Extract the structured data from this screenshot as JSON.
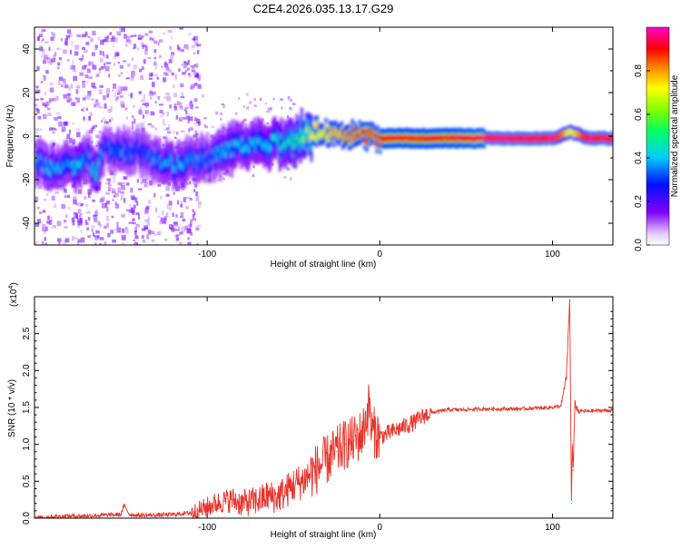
{
  "figure": {
    "title": "C2E4.2026.035.13.17.G29"
  },
  "chart_data": [
    {
      "id": "spectrogram",
      "type": "heatmap",
      "title": "C2E4.2026.035.13.17.G29",
      "xlabel": "Height of straight line (km)",
      "ylabel": "Frequency (Hz)",
      "xlim": [
        -200,
        135
      ],
      "ylim": [
        -50,
        50
      ],
      "x_ticks": [
        -100,
        0,
        100
      ],
      "x_tick_labels": [
        "-100",
        "0",
        "100"
      ],
      "y_ticks": [
        -40,
        -20,
        0,
        20,
        40
      ],
      "y_tick_labels": [
        "-40",
        "-20",
        "0",
        "20",
        "40"
      ],
      "grid": false,
      "colorbar": {
        "label": "Normalized spectral amplitude",
        "range": [
          0,
          1
        ],
        "ticks": [
          0,
          0.2,
          0.4,
          0.6,
          0.8
        ],
        "tick_labels": [
          "0.0",
          "0.2",
          "0.4",
          "0.6",
          "0.8"
        ],
        "colormap": "rainbow (violet-blue-cyan-green-yellow-red-magenta)"
      },
      "ridge": {
        "description": "dominant frequency ridge",
        "x": [
          -197,
          -190,
          -182,
          -175,
          -170,
          -165,
          -160,
          -150,
          -140,
          -130,
          -120,
          -110,
          -100,
          -90,
          -80,
          -70,
          -60,
          -50,
          -45,
          -40,
          -30,
          -20,
          -10,
          0,
          10,
          20,
          40,
          60,
          80,
          100,
          110,
          120,
          135
        ],
        "freq": [
          -12,
          -15,
          -13,
          -14,
          -10,
          -17,
          -5,
          -8,
          -6,
          -10,
          -13,
          -12,
          -10,
          -7,
          -4,
          -5,
          -3,
          -2,
          1,
          2,
          2,
          1,
          0,
          -1,
          -1,
          -1,
          -1,
          -1,
          -1,
          -1,
          2,
          -1,
          -1
        ],
        "amplitude": [
          0.35,
          0.4,
          0.35,
          0.45,
          0.3,
          0.5,
          0.3,
          0.35,
          0.3,
          0.35,
          0.4,
          0.35,
          0.35,
          0.4,
          0.4,
          0.4,
          0.45,
          0.5,
          0.6,
          0.7,
          0.75,
          0.8,
          0.85,
          0.9,
          0.9,
          0.9,
          0.9,
          0.95,
          0.95,
          0.95,
          0.7,
          0.95,
          0.95
        ]
      }
    },
    {
      "id": "snr",
      "type": "line",
      "xlabel": "Height of straight line (km)",
      "ylabel": "SNR (10 * v/v)",
      "y_multiplier_label": "(x10",
      "y_multiplier_exp": "4",
      "y_multiplier_close": ")",
      "xlim": [
        -200,
        135
      ],
      "ylim": [
        0,
        3.0
      ],
      "x_ticks": [
        -100,
        0,
        100
      ],
      "x_tick_labels": [
        "-100",
        "0",
        "100"
      ],
      "y_ticks": [
        0,
        0.5,
        1.0,
        1.5,
        2.0,
        2.5
      ],
      "y_tick_labels": [
        "0.0",
        "0.5",
        "1.0",
        "1.5",
        "2.0",
        "2.5"
      ],
      "grid": false,
      "series": [
        {
          "name": "SNR",
          "color": "#e8332a",
          "x": [
            -200,
            -190,
            -180,
            -170,
            -160,
            -150,
            -148,
            -145,
            -140,
            -130,
            -120,
            -110,
            -105,
            -100,
            -95,
            -90,
            -85,
            -80,
            -75,
            -70,
            -65,
            -60,
            -55,
            -50,
            -45,
            -40,
            -35,
            -30,
            -25,
            -20,
            -15,
            -10,
            -6,
            -5,
            0,
            5,
            10,
            15,
            20,
            25,
            30,
            40,
            50,
            60,
            70,
            80,
            90,
            100,
            105,
            108,
            110,
            111,
            111.5,
            112,
            113,
            115,
            120,
            130,
            135
          ],
          "y": [
            0.0,
            0.02,
            0.03,
            0.03,
            0.04,
            0.05,
            0.17,
            0.05,
            0.04,
            0.04,
            0.05,
            0.07,
            0.1,
            0.15,
            0.2,
            0.23,
            0.25,
            0.2,
            0.22,
            0.24,
            0.3,
            0.28,
            0.35,
            0.45,
            0.5,
            0.6,
            0.7,
            0.8,
            0.9,
            1.0,
            1.05,
            1.15,
            1.55,
            1.2,
            1.1,
            1.15,
            1.2,
            1.25,
            1.3,
            1.38,
            1.43,
            1.47,
            1.47,
            1.48,
            1.48,
            1.48,
            1.49,
            1.5,
            1.52,
            1.9,
            2.95,
            0.2,
            1.0,
            0.65,
            1.55,
            1.45,
            1.45,
            1.46,
            1.46
          ]
        }
      ]
    }
  ]
}
